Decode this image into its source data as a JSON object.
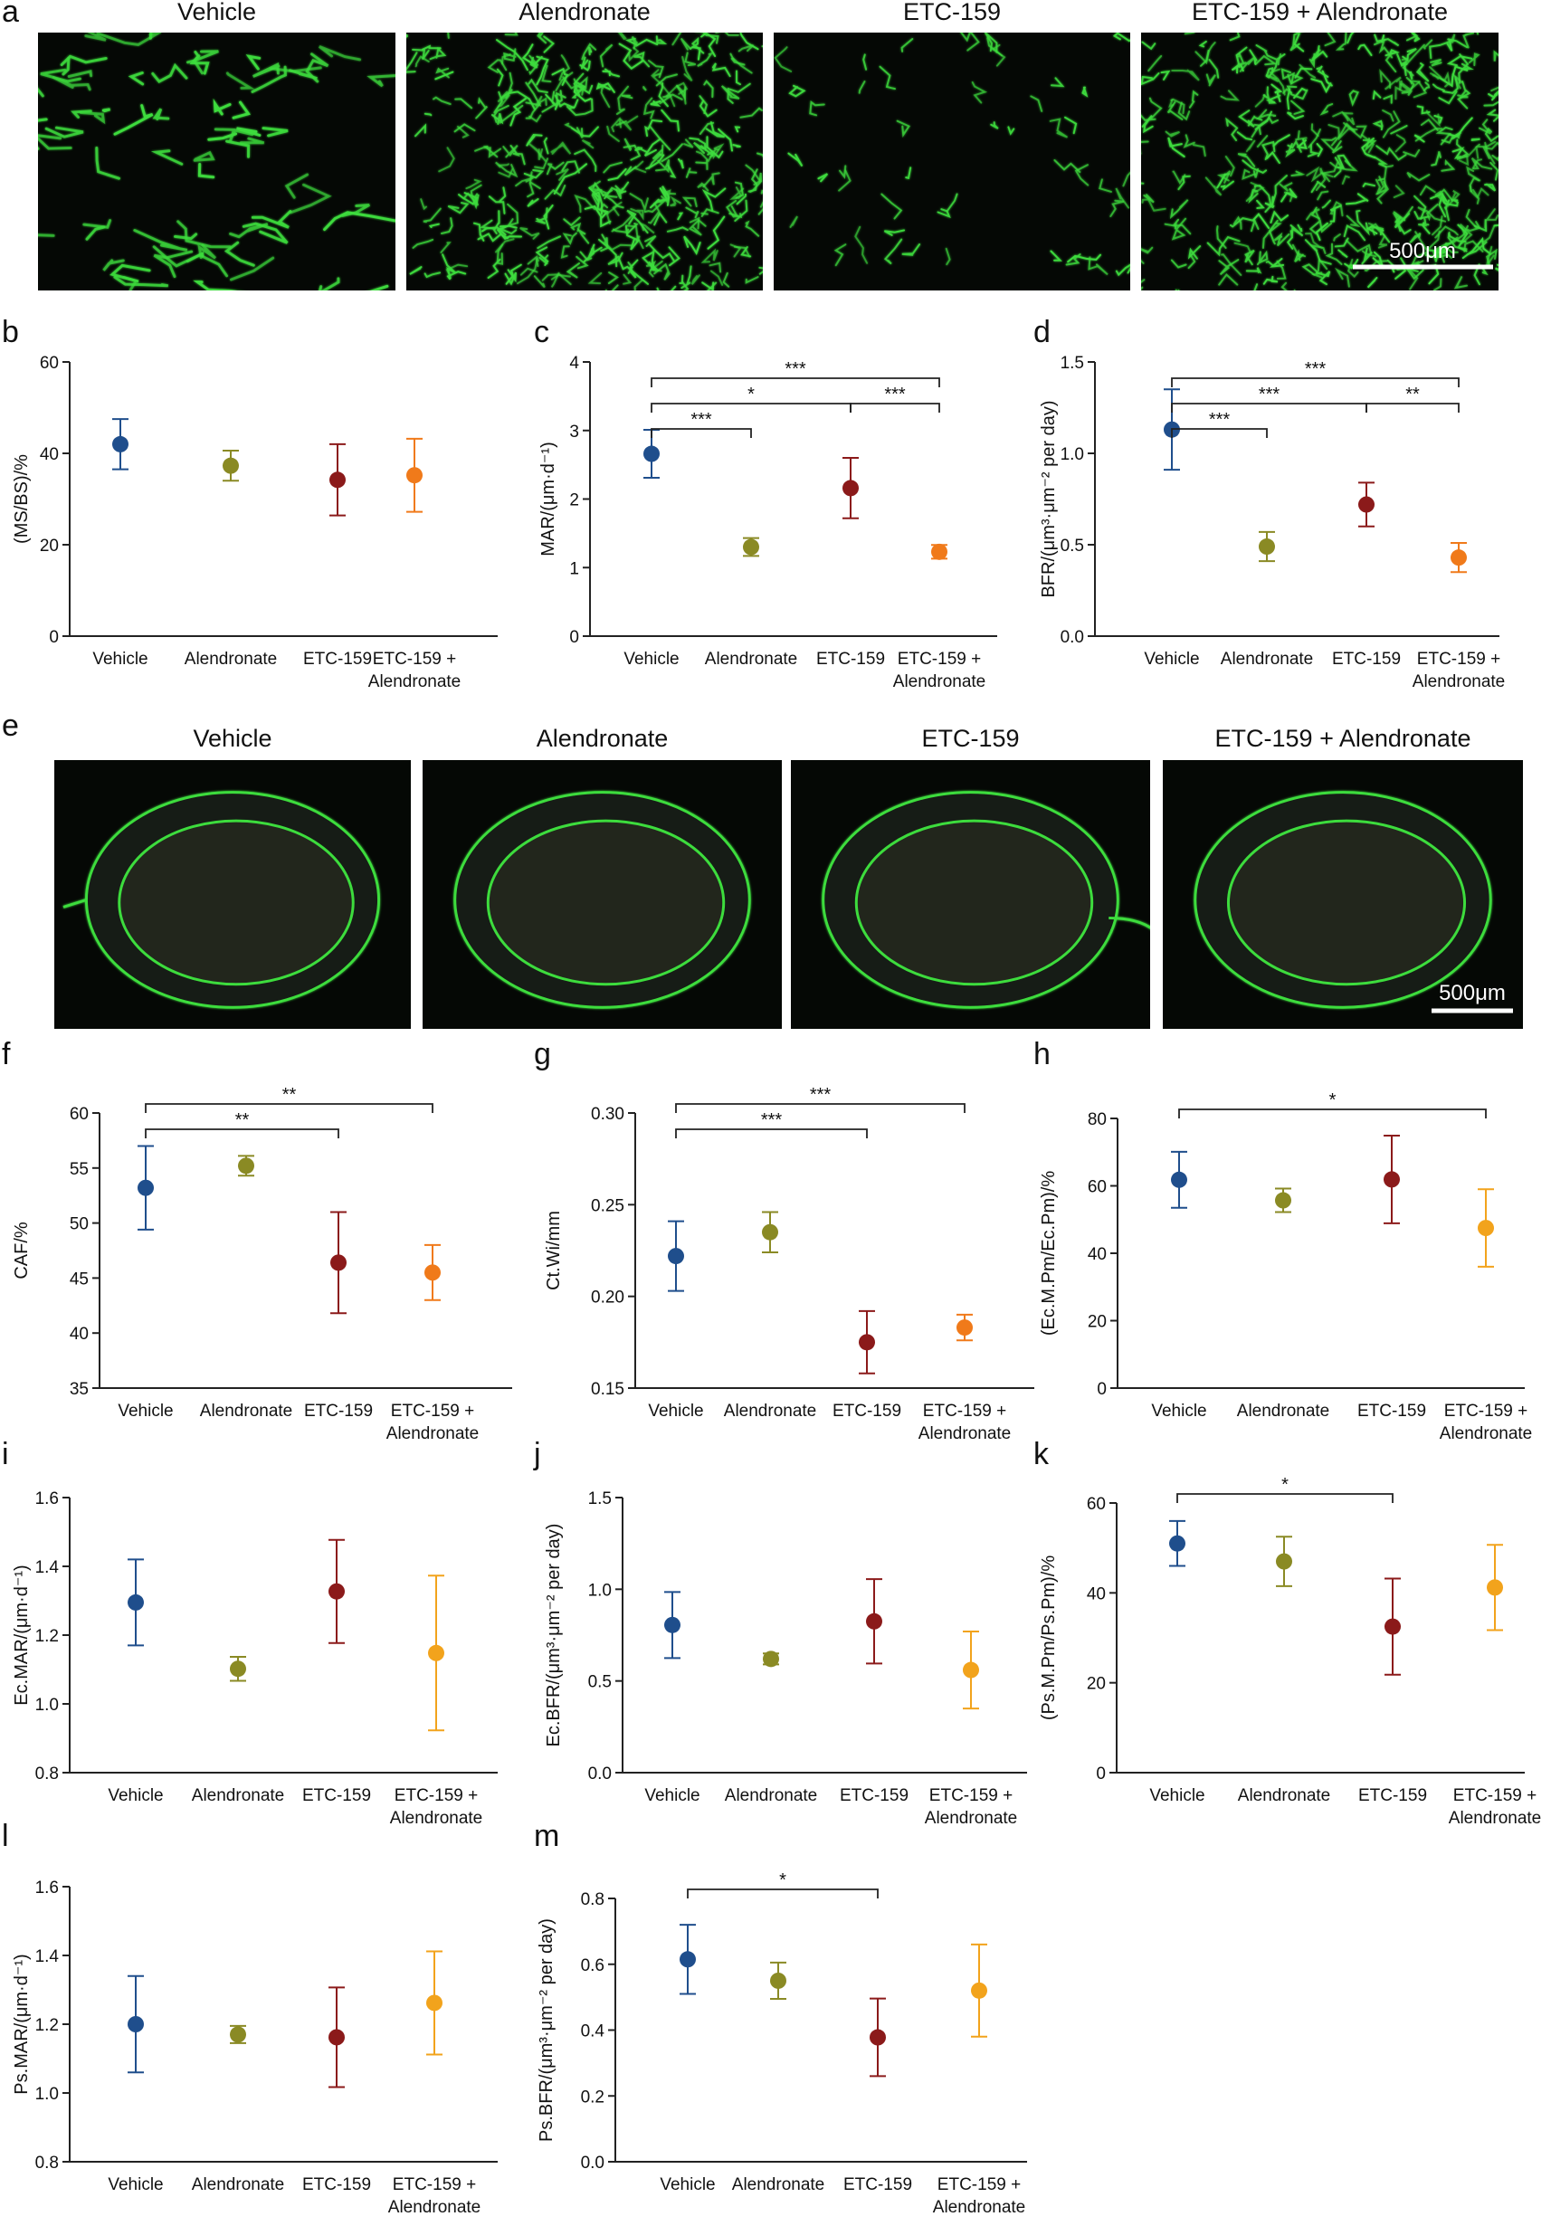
{
  "groups": [
    "Vehicle",
    "Alendronate",
    "ETC-159",
    "ETC-159 + Alendronate"
  ],
  "colors": {
    "Vehicle": "#1f4e8c",
    "Alendronate": "#8a8a24",
    "ETC-159": "#8b1a1a",
    "ETC-159 + Alendronate": "#f07a1a",
    "alt_last": "#f2a31c",
    "fluor": "#3ddc3d"
  },
  "scale_bar": "500μm",
  "micro_panels": [
    {
      "letter": "a",
      "kind": "trabecular",
      "titles": [
        "Vehicle",
        "Alendronate",
        "ETC-159",
        "ETC-159 + Alendronate"
      ],
      "scale_label": "500μm"
    },
    {
      "letter": "e",
      "kind": "cortical",
      "titles": [
        "Vehicle",
        "Alendronate",
        "ETC-159",
        "ETC-159 + Alendronate"
      ],
      "scale_label": "500μm"
    }
  ],
  "chart_data": [
    {
      "panel": "b",
      "type": "scatter",
      "ylabel": "(MS/BS)/%",
      "ylim": [
        0,
        60
      ],
      "yticks": [
        "0",
        "20",
        "40",
        "60"
      ],
      "categories": [
        "Vehicle",
        "Alendronate",
        "ETC-159",
        "ETC-159 +|Alendronate"
      ],
      "values": [
        42,
        37.3,
        34.2,
        35.2
      ],
      "errors": [
        5.5,
        3.3,
        7.8,
        8
      ],
      "comparisons": []
    },
    {
      "panel": "c",
      "type": "scatter",
      "ylabel": "MAR/(μm·d⁻¹)",
      "ylim": [
        0,
        4
      ],
      "yticks": [
        "0",
        "1",
        "2",
        "3",
        "4"
      ],
      "categories": [
        "Vehicle",
        "Alendronate",
        "ETC-159",
        "ETC-159 +|Alendronate"
      ],
      "values": [
        2.66,
        1.3,
        2.16,
        1.23
      ],
      "errors": [
        0.35,
        0.13,
        0.44,
        0.1
      ],
      "comparisons": [
        {
          "from": 0,
          "to": 1,
          "label": "***"
        },
        {
          "from": 0,
          "to": 2,
          "label": "*"
        },
        {
          "from": 2,
          "to": 3,
          "label": "***"
        },
        {
          "from": 0,
          "to": 3,
          "label": "***"
        }
      ]
    },
    {
      "panel": "d",
      "type": "scatter",
      "ylabel": "BFR/(μm³·μm⁻² per day)",
      "ylim": [
        0,
        1.5
      ],
      "yticks": [
        "0.0",
        "0.5",
        "1.0",
        "1.5"
      ],
      "categories": [
        "Vehicle",
        "Alendronate",
        "ETC-159",
        "ETC-159 +|Alendronate"
      ],
      "values": [
        1.13,
        0.49,
        0.72,
        0.43
      ],
      "errors": [
        0.22,
        0.08,
        0.12,
        0.08
      ],
      "comparisons": [
        {
          "from": 0,
          "to": 1,
          "label": "***"
        },
        {
          "from": 0,
          "to": 2,
          "label": "***"
        },
        {
          "from": 2,
          "to": 3,
          "label": "**"
        },
        {
          "from": 0,
          "to": 3,
          "label": "***"
        }
      ]
    },
    {
      "panel": "f",
      "type": "scatter",
      "ylabel": "CAF/%",
      "ylim": [
        35,
        60
      ],
      "yticks": [
        "35",
        "40",
        "45",
        "50",
        "55",
        "60"
      ],
      "categories": [
        "Vehicle",
        "Alendronate",
        "ETC-159",
        "ETC-159 +|Alendronate"
      ],
      "values": [
        53.2,
        55.2,
        46.4,
        45.5
      ],
      "errors": [
        3.8,
        0.9,
        4.6,
        2.5
      ],
      "comparisons": [
        {
          "from": 0,
          "to": 2,
          "label": "**"
        },
        {
          "from": 0,
          "to": 3,
          "label": "**"
        }
      ]
    },
    {
      "panel": "g",
      "type": "scatter",
      "ylabel": "Ct.Wi/mm",
      "ylim": [
        0.15,
        0.3
      ],
      "yticks": [
        "0.15",
        "0.20",
        "0.25",
        "0.30"
      ],
      "categories": [
        "Vehicle",
        "Alendronate",
        "ETC-159",
        "ETC-159 +|Alendronate"
      ],
      "values": [
        0.222,
        0.235,
        0.175,
        0.183
      ],
      "errors": [
        0.019,
        0.011,
        0.017,
        0.007
      ],
      "comparisons": [
        {
          "from": 0,
          "to": 2,
          "label": "***"
        },
        {
          "from": 0,
          "to": 3,
          "label": "***"
        }
      ]
    },
    {
      "panel": "h",
      "type": "scatter",
      "ylabel": "(Ec.M.Pm/Ec.Pm)/%",
      "ylim": [
        0,
        80
      ],
      "yticks": [
        "0",
        "20",
        "40",
        "60",
        "80"
      ],
      "categories": [
        "Vehicle",
        "Alendronate",
        "ETC-159",
        "ETC-159 +|Alendronate"
      ],
      "values": [
        61.8,
        55.7,
        61.9,
        47.5
      ],
      "errors": [
        8.3,
        3.5,
        13,
        11.5
      ],
      "comparisons": [
        {
          "from": 0,
          "to": 3,
          "label": "*"
        }
      ]
    },
    {
      "panel": "i",
      "type": "scatter",
      "ylabel": "Ec.MAR/(μm·d⁻¹)",
      "ylim": [
        0.8,
        1.6
      ],
      "yticks": [
        "0.8",
        "1.0",
        "1.2",
        "1.4",
        "1.6"
      ],
      "categories": [
        "Vehicle",
        "Alendronate",
        "ETC-159",
        "ETC-159 +|Alendronate"
      ],
      "values": [
        1.295,
        1.102,
        1.327,
        1.148
      ],
      "errors": [
        0.125,
        0.035,
        0.15,
        0.225
      ],
      "comparisons": []
    },
    {
      "panel": "j",
      "type": "scatter",
      "ylabel": "Ec.BFR/(μm³·μm⁻² per day)",
      "ylim": [
        0,
        1.5
      ],
      "yticks": [
        "0.0",
        "0.5",
        "1.0",
        "1.5"
      ],
      "categories": [
        "Vehicle",
        "Alendronate",
        "ETC-159",
        "ETC-159 +|Alendronate"
      ],
      "values": [
        0.805,
        0.62,
        0.825,
        0.56
      ],
      "errors": [
        0.18,
        0.03,
        0.23,
        0.21
      ],
      "comparisons": []
    },
    {
      "panel": "k",
      "type": "scatter",
      "ylabel": "(Ps.M.Pm/Ps.Pm)/%",
      "ylim": [
        0,
        60
      ],
      "yticks": [
        "0",
        "20",
        "40",
        "60"
      ],
      "categories": [
        "Vehicle",
        "Alendronate",
        "ETC-159",
        "ETC-159 +|Alendronate"
      ],
      "values": [
        51,
        47,
        32.5,
        41.2
      ],
      "errors": [
        5,
        5.5,
        10.7,
        9.5
      ],
      "comparisons": [
        {
          "from": 0,
          "to": 2,
          "label": "*"
        }
      ]
    },
    {
      "panel": "l",
      "type": "scatter",
      "ylabel": "Ps.MAR/(μm·d⁻¹)",
      "ylim": [
        0.8,
        1.6
      ],
      "yticks": [
        "0.8",
        "1.0",
        "1.2",
        "1.4",
        "1.6"
      ],
      "categories": [
        "Vehicle",
        "Alendronate",
        "ETC-159",
        "ETC-159 +|Alendronate"
      ],
      "values": [
        1.2,
        1.17,
        1.162,
        1.262
      ],
      "errors": [
        0.14,
        0.025,
        0.145,
        0.15
      ],
      "comparisons": []
    },
    {
      "panel": "m",
      "type": "scatter",
      "ylabel": "Ps.BFR/(μm³·μm⁻² per day)",
      "ylim": [
        0,
        0.8
      ],
      "yticks": [
        "0.0",
        "0.2",
        "0.4",
        "0.6",
        "0.8"
      ],
      "categories": [
        "Vehicle",
        "Alendronate",
        "ETC-159",
        "ETC-159 +|Alendronate"
      ],
      "values": [
        0.615,
        0.55,
        0.378,
        0.52
      ],
      "errors": [
        0.105,
        0.055,
        0.118,
        0.14
      ],
      "comparisons": [
        {
          "from": 0,
          "to": 2,
          "label": "*"
        }
      ]
    }
  ]
}
